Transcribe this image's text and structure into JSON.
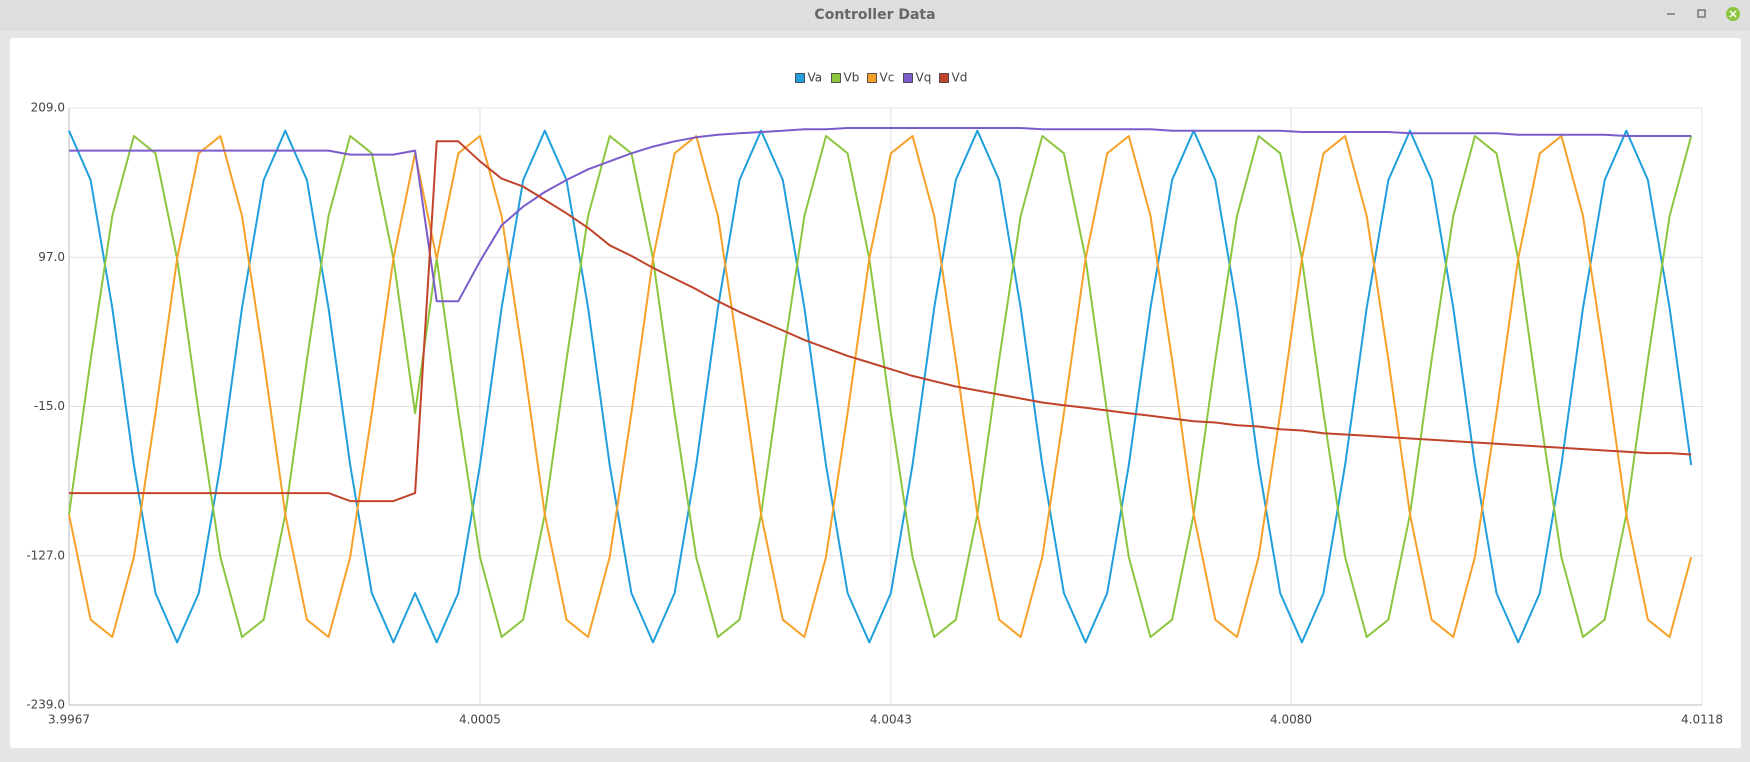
{
  "window": {
    "title": "Controller Data"
  },
  "chart_data": {
    "type": "line",
    "legend": "top",
    "grid": true,
    "x": [
      3.9967,
      3.9969,
      3.9971,
      3.9973,
      3.9975,
      3.9977,
      3.9979,
      3.9981,
      3.9983,
      3.9985,
      3.9987,
      3.9989,
      3.9991,
      3.9993,
      3.9995,
      3.9997,
      3.9999,
      4.0001,
      4.0003,
      4.0005,
      4.0007,
      4.0009,
      4.0011,
      4.0013,
      4.0015,
      4.0017,
      4.0019,
      4.0021,
      4.0023,
      4.0025,
      4.0027,
      4.0029,
      4.0031,
      4.0033,
      4.0035,
      4.0037,
      4.0039,
      4.0041,
      4.0043,
      4.0045,
      4.0047,
      4.0049,
      4.0051,
      4.0053,
      4.0055,
      4.0057,
      4.0059,
      4.0061,
      4.0063,
      4.0065,
      4.0067,
      4.0069,
      4.0071,
      4.0073,
      4.0075,
      4.0077,
      4.0079,
      4.0081,
      4.0083,
      4.0085,
      4.0087,
      4.0089,
      4.0091,
      4.0093,
      4.0095,
      4.0097,
      4.0099,
      4.0101,
      4.0103,
      4.0105,
      4.0107,
      4.0109,
      4.0111,
      4.0113,
      4.0115,
      4.0117
    ],
    "series": [
      {
        "name": "Va",
        "color": "#1f9fdc",
        "values": [
          192,
          155,
          59,
          -59,
          -155,
          -192,
          -155,
          -59,
          59,
          155,
          192,
          155,
          59,
          -59,
          -155,
          -192,
          -155,
          -192,
          -155,
          -59,
          59,
          155,
          192,
          155,
          59,
          -59,
          -155,
          -192,
          -155,
          -59,
          59,
          155,
          192,
          155,
          59,
          -59,
          -155,
          -192,
          -155,
          -59,
          59,
          155,
          192,
          155,
          59,
          -59,
          -155,
          -192,
          -155,
          -59,
          59,
          155,
          192,
          155,
          59,
          -59,
          -155,
          -192,
          -155,
          -59,
          59,
          155,
          192,
          155,
          59,
          -59,
          -155,
          -192,
          -155,
          -59,
          59,
          155,
          192,
          155,
          59,
          -59
        ]
      },
      {
        "name": "Vb",
        "color": "#8cc63f",
        "values": [
          -96,
          20,
          128,
          188,
          175,
          96,
          -20,
          -128,
          -188,
          -175,
          -96,
          20,
          128,
          188,
          175,
          96,
          -20,
          96,
          -20,
          -128,
          -188,
          -175,
          -96,
          20,
          128,
          188,
          175,
          96,
          -20,
          -128,
          -188,
          -175,
          -96,
          20,
          128,
          188,
          175,
          96,
          -20,
          -128,
          -188,
          -175,
          -96,
          20,
          128,
          188,
          175,
          96,
          -20,
          -128,
          -188,
          -175,
          -96,
          20,
          128,
          188,
          175,
          96,
          -20,
          -128,
          -188,
          -175,
          -96,
          20,
          128,
          188,
          175,
          96,
          -20,
          -128,
          -188,
          -175,
          -96,
          20,
          128,
          188
        ]
      },
      {
        "name": "Vc",
        "color": "#f7a128",
        "values": [
          -96,
          -175,
          -188,
          -128,
          -20,
          96,
          175,
          188,
          128,
          20,
          -96,
          -175,
          -188,
          -128,
          -20,
          96,
          175,
          96,
          175,
          188,
          128,
          20,
          -96,
          -175,
          -188,
          -128,
          -20,
          96,
          175,
          188,
          128,
          20,
          -96,
          -175,
          -188,
          -128,
          -20,
          96,
          175,
          188,
          128,
          20,
          -96,
          -175,
          -188,
          -128,
          -20,
          96,
          175,
          188,
          128,
          20,
          -96,
          -175,
          -188,
          -128,
          -20,
          96,
          175,
          188,
          128,
          20,
          -96,
          -175,
          -188,
          -128,
          -20,
          96,
          175,
          188,
          128,
          20,
          -96,
          -175,
          -188,
          -128
        ]
      },
      {
        "name": "Vq",
        "color": "#7b5ccc",
        "values": [
          177,
          177,
          177,
          177,
          177,
          177,
          177,
          177,
          177,
          177,
          177,
          177,
          177,
          174,
          174,
          174,
          177,
          64,
          64,
          94,
          121,
          135,
          146,
          155,
          163,
          169,
          175,
          180,
          184,
          187,
          189,
          190,
          191,
          192,
          193,
          193,
          194,
          194,
          194,
          194,
          194,
          194,
          194,
          194,
          194,
          193,
          193,
          193,
          193,
          193,
          193,
          192,
          192,
          192,
          192,
          192,
          192,
          191,
          191,
          191,
          191,
          191,
          190,
          190,
          190,
          190,
          190,
          189,
          189,
          189,
          189,
          189,
          188,
          188,
          188,
          188
        ]
      },
      {
        "name": "Vd",
        "color": "#c0442c",
        "values": [
          -80,
          -80,
          -80,
          -80,
          -80,
          -80,
          -80,
          -80,
          -80,
          -80,
          -80,
          -80,
          -80,
          -86,
          -86,
          -86,
          -80,
          184,
          184,
          169,
          156,
          150,
          140,
          130,
          119,
          106,
          98,
          89,
          81,
          73,
          64,
          56,
          49,
          42,
          35,
          29,
          23,
          18,
          13,
          8,
          4,
          0,
          -3,
          -6,
          -9,
          -12,
          -14,
          -16,
          -18,
          -20,
          -22,
          -24,
          -26,
          -27,
          -29,
          -30,
          -32,
          -33,
          -35,
          -36,
          -37,
          -38,
          -39,
          -40,
          -41,
          -42,
          -43,
          -44,
          -45,
          -46,
          -47,
          -48,
          -49,
          -50,
          -50,
          -51
        ]
      }
    ],
    "xlim": [
      3.9967,
      4.0118
    ],
    "xticks": [
      3.9967,
      4.0005,
      4.0043,
      {
        "value": 4.008,
        "label": "4.0080"
      },
      4.0118
    ],
    "ylim": [
      -239,
      209
    ],
    "yticks": [
      {
        "value": 209,
        "label": "209.0"
      },
      {
        "value": 97,
        "label": "97.0"
      },
      {
        "value": -15,
        "label": "-15.0"
      },
      {
        "value": -127,
        "label": "-127.0"
      },
      {
        "value": -239,
        "label": "-239.0"
      }
    ]
  }
}
